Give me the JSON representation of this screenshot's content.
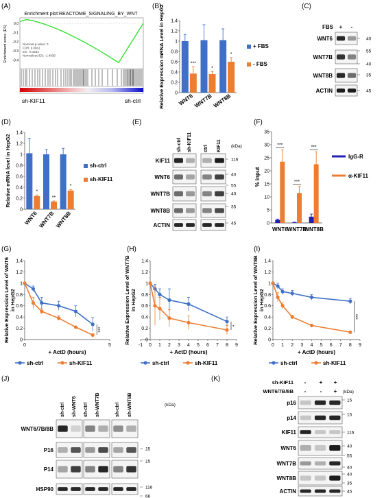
{
  "colors": {
    "blue": "#3f6fc7",
    "orange": "#ed7d31",
    "navy": "#1f1fb4",
    "gsea": "#33e033"
  },
  "panels": {
    "A": "(A)",
    "B": "(B)",
    "C": "(C)",
    "D": "(D)",
    "E": "(E)",
    "F": "(F)",
    "G": "(G)",
    "H": "(H)",
    "I": "(I)",
    "J": "(J)",
    "K": "(K)"
  },
  "gsea": {
    "title": "Enrichment plot:REACTOME_SIGNALING_BY_WNT",
    "ylabel": "Enrichment score (ES)",
    "yticks": [
      "0.0",
      "-0.1",
      "-0.2",
      "-0.3",
      "-0.4"
    ],
    "stats": [
      "Nominal p-value: 0",
      "FDR: 0.0661",
      "ES: -0.4263",
      "Normalized ES: -1.4939"
    ],
    "left_label": "sh-KIF11",
    "right_label": "sh-ctrl"
  },
  "chart_data": [
    {
      "id": "B",
      "type": "bar",
      "categories": [
        "WNT6",
        "WNT7B",
        "WNT8B"
      ],
      "series": [
        {
          "name": "+ FBS",
          "values": [
            1.0,
            1.02,
            1.02
          ],
          "err": [
            0.13,
            0.3,
            0.22
          ]
        },
        {
          "name": "- FBS",
          "values": [
            0.37,
            0.36,
            0.6
          ],
          "err": [
            0.13,
            0.05,
            0.08
          ]
        }
      ],
      "ylabel": "Relative Expression mRNA Level in HepG2",
      "ylim": [
        0,
        1.4
      ],
      "yticks": [
        "0",
        "0.2",
        "0.4",
        "0.6",
        "0.8",
        "1",
        "1.2",
        "1.4"
      ],
      "sig": [
        "***",
        "*",
        "*"
      ]
    },
    {
      "id": "D",
      "type": "bar",
      "categories": [
        "WNT6",
        "WNT7B",
        "WNT8B"
      ],
      "series": [
        {
          "name": "sh-ctrl",
          "values": [
            1.02,
            1.0,
            1.0
          ],
          "err": [
            0.27,
            0.09,
            0.11
          ]
        },
        {
          "name": "sh-KIF11",
          "values": [
            0.24,
            0.14,
            0.34
          ],
          "err": [
            0.02,
            0.01,
            0.02
          ]
        }
      ],
      "ylabel": "Relative mRNA level in HepG2",
      "ylim": [
        0,
        1.4
      ],
      "yticks": [
        "0",
        "0.2",
        "0.4",
        "0.6",
        "0.8",
        "1",
        "1.2",
        "1.4"
      ],
      "sig": [
        "*",
        "**",
        "*"
      ]
    },
    {
      "id": "F",
      "type": "bar",
      "categories": [
        "WNT6",
        "WNT7B",
        "WNT8B"
      ],
      "series": [
        {
          "name": "IgG-R",
          "values": [
            1.2,
            0.2,
            2.4
          ],
          "err": [
            0.3,
            0.1,
            1.0
          ]
        },
        {
          "name": "α-KIF11",
          "values": [
            23.5,
            11.5,
            22.5
          ],
          "err": [
            4.5,
            2.5,
            4.8
          ]
        }
      ],
      "ylabel": "% input",
      "ylim": [
        0,
        35
      ],
      "yticks": [
        "0",
        "5",
        "10",
        "15",
        "20",
        "25",
        "30",
        "35"
      ],
      "sig": [
        "***",
        "***",
        "***"
      ]
    },
    {
      "id": "G",
      "type": "line",
      "ylabel": "Relative Expression Level of WNT6 in HepG2",
      "xlabel": "+ ActD (hours)",
      "xlim": [
        0,
        5
      ],
      "ylim": [
        0,
        1.4
      ],
      "xticks": [
        "0",
        "5"
      ],
      "yticks": [
        "0",
        "0.2",
        "0.4",
        "0.6",
        "0.8",
        "1",
        "1.2",
        "1.4"
      ],
      "x": [
        0,
        0.5,
        1,
        2,
        3,
        4
      ],
      "series": [
        {
          "name": "sh-ctrl",
          "values": [
            1.0,
            0.9,
            0.65,
            0.6,
            0.5,
            0.27
          ],
          "err": [
            0,
            0.05,
            0.1,
            0.08,
            0.1,
            0.12
          ]
        },
        {
          "name": "sh-KIF11",
          "values": [
            1.0,
            0.65,
            0.5,
            0.38,
            0.22,
            0.08
          ],
          "err": [
            0,
            0.1,
            0.05,
            0.04,
            0.02,
            0.02
          ]
        }
      ],
      "sig": "***"
    },
    {
      "id": "H",
      "type": "line",
      "ylabel": "Relative Expression Level of WNT7B in HepG2",
      "xlabel": "+ ActD (hours)",
      "xlim": [
        -1,
        9
      ],
      "ylim": [
        0,
        1.4
      ],
      "xticks": [
        "-1",
        "0",
        "1",
        "2",
        "3",
        "4",
        "5",
        "6",
        "7",
        "8",
        "9"
      ],
      "yticks": [
        "0",
        "0.2",
        "0.4",
        "0.6",
        "0.8",
        "1",
        "1.2",
        "1.4"
      ],
      "x": [
        0,
        0.5,
        1,
        2,
        4,
        8
      ],
      "series": [
        {
          "name": "sh-ctrl",
          "values": [
            1.0,
            0.9,
            0.8,
            0.7,
            0.63,
            0.32
          ],
          "err": [
            0,
            0.08,
            0.1,
            0.2,
            0.12,
            0.08
          ]
        },
        {
          "name": "sh-KIF11",
          "values": [
            1.0,
            0.6,
            0.55,
            0.38,
            0.3,
            0.17
          ],
          "err": [
            0,
            0.35,
            0.2,
            0.15,
            0.12,
            0.08
          ]
        }
      ],
      "sig": "*"
    },
    {
      "id": "I",
      "type": "line",
      "ylabel": "Relative Expression Level of WNT8B in HepG2",
      "xlabel": "+ ActD (hours)",
      "xlim": [
        0,
        9
      ],
      "ylim": [
        0,
        1.4
      ],
      "xticks": [
        "0",
        "1",
        "2",
        "3",
        "4",
        "5",
        "6",
        "7",
        "8",
        "9"
      ],
      "yticks": [
        "0",
        "0.2",
        "0.4",
        "0.6",
        "0.8",
        "1",
        "1.2",
        "1.4"
      ],
      "x": [
        0,
        0.5,
        1,
        2,
        4,
        8
      ],
      "series": [
        {
          "name": "sh-ctrl",
          "values": [
            1.0,
            0.95,
            0.85,
            0.82,
            0.75,
            0.68
          ],
          "err": [
            0,
            0.05,
            0.05,
            0.05,
            0.05,
            0.05
          ]
        },
        {
          "name": "sh-KIF11",
          "values": [
            1.0,
            0.75,
            0.6,
            0.4,
            0.25,
            0.13
          ],
          "err": [
            0,
            0.08,
            0.05,
            0.03,
            0.02,
            0.01
          ]
        }
      ],
      "sig": "***"
    }
  ],
  "blotC": {
    "cols": [
      "FBS",
      "+",
      "-"
    ],
    "rows": [
      "WNT6",
      "WNT7B",
      "WNT8B",
      "ACTIN"
    ],
    "mw": [
      "40",
      "55",
      "40",
      "35",
      "45"
    ]
  },
  "blotE": {
    "cols": [
      "sh-ctrl",
      "sh-KIF11",
      "ctrl",
      "KIF11"
    ],
    "kda": "(kDa)",
    "rows": [
      "KIF11",
      "WNT6",
      "WNT7B",
      "WNT8B",
      "ACTIN"
    ],
    "mw": [
      "116",
      "40",
      "55",
      "40",
      "35",
      "45"
    ]
  },
  "blotJ": {
    "cols": [
      "sh-ctrl",
      "sh-WNT6",
      "sh-ctrl",
      "sh-WNT7B",
      "sh-ctrl",
      "sh-WNT8B"
    ],
    "kda": "(kDa)",
    "rows": [
      "WNT6/7B/8B",
      "P16",
      "P14",
      "HSP90"
    ],
    "mw": [
      "15",
      "15",
      "116",
      "66"
    ]
  },
  "blotK": {
    "hdr1": "sh-KIF11",
    "hdr2": "WNT6/7B/8B",
    "v1": [
      "-",
      "+",
      "+"
    ],
    "v2": [
      "-",
      "-",
      "+"
    ],
    "kda": "(kDa)",
    "rows": [
      "p16",
      "p14",
      "KIF11",
      "WNT6",
      "WNT7B",
      "WNT8B",
      "ACTIN"
    ],
    "mw": [
      "15",
      "15",
      "116",
      "40",
      "55",
      "40",
      "40",
      "35",
      "45"
    ]
  }
}
